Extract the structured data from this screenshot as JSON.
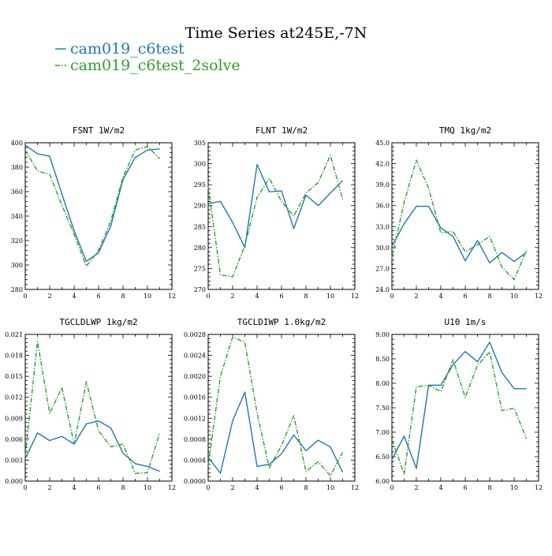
{
  "title": "Time Series at245E,-7N",
  "legend": [
    {
      "name": "cam019_c6test",
      "color": "#1f77b4",
      "dash": "solid"
    },
    {
      "name": "cam019_c6test_2solve",
      "color": "#2ca02c",
      "dash": "dashdot"
    }
  ],
  "chart_data": [
    {
      "type": "line",
      "title": "FSNT   1W/m2",
      "x": [
        0,
        1,
        2,
        3,
        4,
        5,
        6,
        7,
        8,
        9,
        10,
        11
      ],
      "xlim": [
        0,
        12
      ],
      "xticks": [
        0,
        2,
        4,
        6,
        8,
        10,
        12
      ],
      "ylim": [
        280,
        400
      ],
      "yticks": [
        280,
        300,
        320,
        340,
        360,
        380,
        400
      ],
      "ytick_labels": [
        "280",
        "300",
        "320",
        "340",
        "360",
        "380",
        "400"
      ],
      "series": [
        {
          "name": "cam019_c6test",
          "values": [
            398,
            391,
            389,
            358,
            328,
            303,
            310,
            332,
            370,
            388,
            394,
            395
          ]
        },
        {
          "name": "cam019_c6test_2solve",
          "values": [
            394,
            377,
            374,
            349,
            325,
            299,
            312,
            336,
            372,
            394,
            397,
            387
          ]
        }
      ]
    },
    {
      "type": "line",
      "title": "FLNT   1W/m2",
      "x": [
        0,
        1,
        2,
        3,
        4,
        5,
        6,
        7,
        8,
        9,
        10,
        11
      ],
      "xlim": [
        0,
        12
      ],
      "xticks": [
        0,
        2,
        4,
        6,
        8,
        10,
        12
      ],
      "ylim": [
        270,
        305
      ],
      "yticks": [
        270,
        275,
        280,
        285,
        290,
        295,
        300,
        305
      ],
      "ytick_labels": [
        "270",
        "275",
        "280",
        "285",
        "290",
        "295",
        "300",
        "305"
      ],
      "series": [
        {
          "name": "cam019_c6test",
          "values": [
            290.5,
            291,
            286,
            280,
            299.8,
            293.3,
            293.5,
            284.5,
            292.5,
            290,
            293,
            296
          ]
        },
        {
          "name": "cam019_c6test_2solve",
          "values": [
            294.5,
            273.5,
            273,
            280.5,
            292,
            296.5,
            291,
            287.5,
            293,
            295.5,
            302,
            291.5
          ]
        }
      ]
    },
    {
      "type": "line",
      "title": "TMQ   1kg/m2",
      "x": [
        0,
        1,
        2,
        3,
        4,
        5,
        6,
        7,
        8,
        9,
        10,
        11
      ],
      "xlim": [
        0,
        12
      ],
      "xticks": [
        0,
        2,
        4,
        6,
        8,
        10,
        12
      ],
      "ylim": [
        24.0,
        45.0
      ],
      "yticks": [
        24,
        27,
        30,
        33,
        36,
        39,
        42,
        45
      ],
      "ytick_labels": [
        "24.0",
        "27.0",
        "30.0",
        "33.0",
        "36.0",
        "39.0",
        "42.0",
        "45.0"
      ],
      "series": [
        {
          "name": "cam019_c6test",
          "values": [
            30.2,
            33.4,
            35.9,
            35.9,
            32.8,
            31.6,
            28.1,
            31.0,
            27.8,
            29.3,
            28.0,
            29.3
          ]
        },
        {
          "name": "cam019_c6test_2solve",
          "values": [
            28.5,
            36.5,
            42.5,
            38.5,
            32.1,
            32.3,
            29.4,
            30.4,
            31.6,
            27.2,
            25.4,
            29.6
          ]
        }
      ]
    },
    {
      "type": "line",
      "title": "TGCLDLWP   1kg/m2",
      "x": [
        0,
        1,
        2,
        3,
        4,
        5,
        6,
        7,
        8,
        9,
        10,
        11
      ],
      "xlim": [
        0,
        12
      ],
      "xticks": [
        0,
        2,
        4,
        6,
        8,
        10,
        12
      ],
      "ylim": [
        0,
        0.021
      ],
      "yticks": [
        0,
        0.003,
        0.006,
        0.009,
        0.012,
        0.015,
        0.018,
        0.021
      ],
      "ytick_labels": [
        "0.000",
        "0.003",
        "0.006",
        "0.009",
        "0.012",
        "0.015",
        "0.018",
        "0.021"
      ],
      "series": [
        {
          "name": "cam019_c6test",
          "values": [
            0.0032,
            0.0069,
            0.0058,
            0.0064,
            0.0053,
            0.0082,
            0.0086,
            0.0076,
            0.004,
            0.0025,
            0.0021,
            0.0014
          ]
        },
        {
          "name": "cam019_c6test_2solve",
          "values": [
            0.0035,
            0.02,
            0.0097,
            0.0134,
            0.0053,
            0.0142,
            0.0072,
            0.0049,
            0.0053,
            0.0011,
            0.0012,
            0.0069
          ]
        }
      ]
    },
    {
      "type": "line",
      "title": "TGCLDIWP   1.0kg/m2",
      "x": [
        0,
        1,
        2,
        3,
        4,
        5,
        6,
        7,
        8,
        9,
        10,
        11
      ],
      "xlim": [
        0,
        12
      ],
      "xticks": [
        0,
        2,
        4,
        6,
        8,
        10,
        12
      ],
      "ylim": [
        0,
        0.0028
      ],
      "yticks": [
        0,
        0.0004,
        0.0008,
        0.0012,
        0.0016,
        0.002,
        0.0024,
        0.0028
      ],
      "ytick_labels": [
        "0.0000",
        "0.0004",
        "0.0008",
        "0.0012",
        "0.0016",
        "0.0020",
        "0.0024",
        "0.0028"
      ],
      "series": [
        {
          "name": "cam019_c6test",
          "values": [
            0.00045,
            0.00015,
            0.00115,
            0.0017,
            0.00028,
            0.00032,
            0.00052,
            0.00088,
            0.00058,
            0.00078,
            0.00065,
            0.00017
          ]
        },
        {
          "name": "cam019_c6test_2solve",
          "values": [
            0.0003,
            0.002,
            0.00275,
            0.00265,
            0.0013,
            0.00025,
            0.00068,
            0.00125,
            0.00018,
            0.00037,
            0.0001,
            0.00055
          ]
        }
      ]
    },
    {
      "type": "line",
      "title": "U10   1m/s",
      "x": [
        0,
        1,
        2,
        3,
        4,
        5,
        6,
        7,
        8,
        9,
        10,
        11
      ],
      "xlim": [
        0,
        12
      ],
      "xticks": [
        0,
        2,
        4,
        6,
        8,
        10,
        12
      ],
      "ylim": [
        6.0,
        9.0
      ],
      "yticks": [
        6.0,
        6.5,
        7.0,
        7.5,
        8.0,
        8.5,
        9.0
      ],
      "ytick_labels": [
        "6.00",
        "6.50",
        "7.00",
        "7.50",
        "8.00",
        "8.50",
        "9.00"
      ],
      "series": [
        {
          "name": "cam019_c6test",
          "values": [
            6.44,
            6.92,
            6.26,
            7.96,
            7.96,
            8.38,
            8.65,
            8.44,
            8.84,
            8.22,
            7.89,
            7.89
          ]
        },
        {
          "name": "cam019_c6test_2solve",
          "values": [
            6.85,
            6.14,
            7.93,
            7.96,
            7.83,
            8.48,
            7.71,
            8.37,
            8.64,
            7.44,
            7.49,
            6.87
          ]
        }
      ]
    }
  ]
}
